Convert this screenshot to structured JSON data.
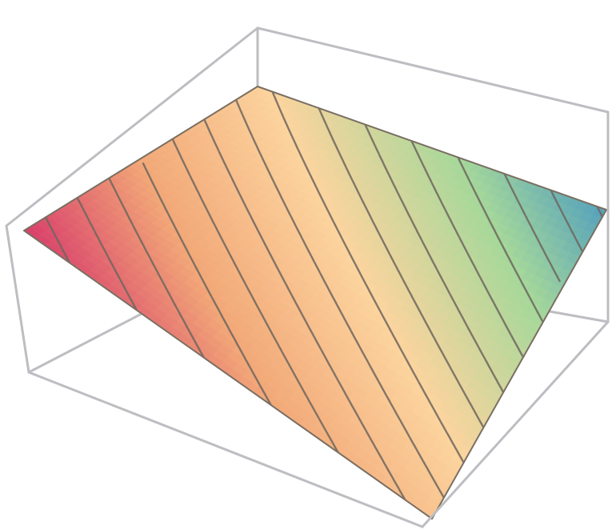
{
  "chart_data": {
    "type": "surface3d",
    "title": "",
    "xlabel": "",
    "ylabel": "",
    "zlabel": "",
    "grid": false,
    "axes_ticks": false,
    "bounding_box": true,
    "contour_mesh": true,
    "colormap": [
      "#d6356a",
      "#f2a878",
      "#fcd49e",
      "#a6d89a",
      "#3f93c5"
    ],
    "x": [
      0,
      1
    ],
    "y": [
      0,
      1
    ],
    "z": [
      [
        0.98,
        0.6
      ],
      [
        0.52,
        0.05
      ]
    ],
    "zlim": [
      0,
      1
    ],
    "contour_levels": 16
  },
  "colors": {
    "box": "#bdbdc2",
    "contour": "#6e665e",
    "background": "#ffffff"
  }
}
